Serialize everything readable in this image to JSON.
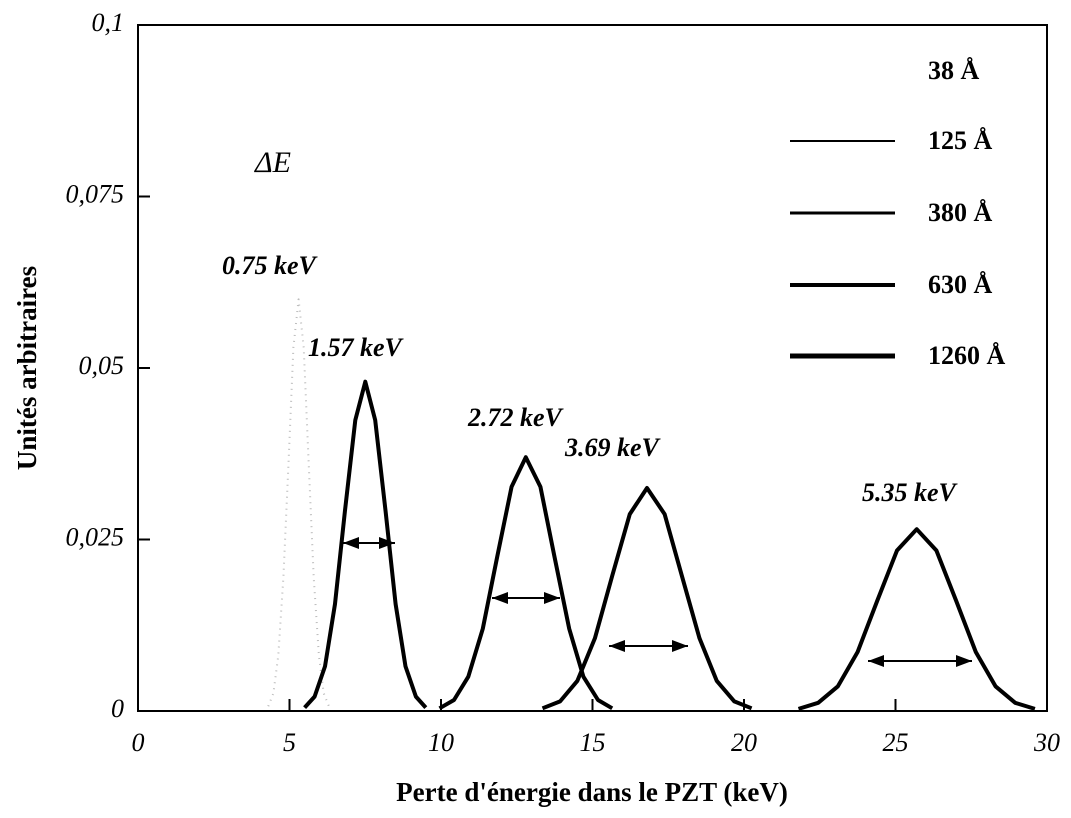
{
  "chart_data": {
    "type": "line",
    "xlabel": "Perte d'énergie dans le PZT (keV)",
    "ylabel": "Unités arbitraires",
    "xlim": [
      0,
      30
    ],
    "xticks": [
      0,
      5,
      10,
      15,
      20,
      25,
      30
    ],
    "ylim": [
      0,
      0.1
    ],
    "yticks": [
      0,
      {
        "value": 0.025,
        "label": "0,025"
      },
      {
        "value": 0.05,
        "label": "0,05"
      },
      {
        "value": 0.075,
        "label": "0,075"
      },
      {
        "value": 0.1,
        "label": "0,1"
      }
    ],
    "legend": "upper right",
    "annotations": [
      "ΔE",
      "0.75 keV",
      "1.57 keV",
      "2.72 keV",
      "3.69 keV",
      "5.35 keV"
    ],
    "series": [
      {
        "name": "38 Å",
        "color": "#bbbbbb",
        "x": [
          4.3,
          4.47,
          4.63,
          4.8,
          4.97,
          5.13,
          5.3,
          5.47,
          5.63,
          5.8,
          5.97,
          6.13,
          6.3
        ],
        "values": [
          0.0007,
          0.0026,
          0.0081,
          0.0195,
          0.0364,
          0.053,
          0.06,
          0.053,
          0.0364,
          0.0195,
          0.0081,
          0.0026,
          0.0007
        ]
      },
      {
        "name": "125 Å",
        "color": "#000000",
        "x": [
          5.5,
          5.83,
          6.17,
          6.5,
          6.83,
          7.17,
          7.5,
          7.83,
          8.17,
          8.5,
          8.83,
          9.17,
          9.5
        ],
        "values": [
          0.0005,
          0.0021,
          0.0065,
          0.0156,
          0.0291,
          0.0424,
          0.048,
          0.0424,
          0.0291,
          0.0156,
          0.0065,
          0.0021,
          0.0005
        ]
      },
      {
        "name": "380 Å",
        "color": "#000000",
        "x": [
          9.95,
          10.43,
          10.9,
          11.38,
          11.85,
          12.33,
          12.8,
          13.28,
          13.75,
          14.23,
          14.7,
          15.18,
          15.65
        ],
        "values": [
          0.0004,
          0.0016,
          0.005,
          0.012,
          0.0224,
          0.0327,
          0.037,
          0.0327,
          0.0224,
          0.012,
          0.005,
          0.0016,
          0.0004
        ]
      },
      {
        "name": "630 Å",
        "color": "#000000",
        "x": [
          13.35,
          13.93,
          14.5,
          15.08,
          15.65,
          16.23,
          16.8,
          17.38,
          17.95,
          18.53,
          19.1,
          19.68,
          20.25
        ],
        "values": [
          0.0004,
          0.0014,
          0.0044,
          0.0106,
          0.0197,
          0.0287,
          0.0325,
          0.0287,
          0.0197,
          0.0106,
          0.0044,
          0.0014,
          0.0004
        ]
      },
      {
        "name": "1260 Å",
        "color": "#000000",
        "x": [
          21.8,
          22.45,
          23.1,
          23.75,
          24.4,
          25.05,
          25.7,
          26.35,
          27.0,
          27.65,
          28.3,
          28.95,
          29.6
        ],
        "values": [
          0.0003,
          0.0012,
          0.0036,
          0.0086,
          0.0161,
          0.0234,
          0.0265,
          0.0234,
          0.0161,
          0.0086,
          0.0036,
          0.0012,
          0.0003
        ]
      }
    ]
  }
}
